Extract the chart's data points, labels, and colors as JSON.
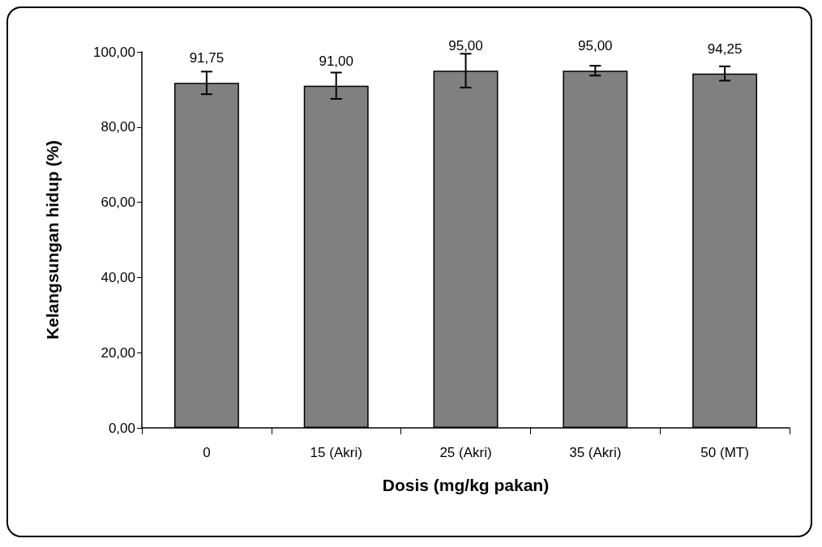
{
  "chart_data": {
    "type": "bar",
    "xlabel": "Dosis (mg/kg pakan)",
    "ylabel": "Kelangsungan hidup (%)",
    "categories": [
      "0",
      "15 (Akri)",
      "25 (Akri)",
      "35 (Akri)",
      "50 (MT)"
    ],
    "values": [
      91.75,
      91.0,
      95.0,
      95.0,
      94.25
    ],
    "value_labels": [
      "91,75",
      "91,00",
      "95,00",
      "95,00",
      "94,25"
    ],
    "errors": [
      3,
      3.5,
      4.5,
      1.3,
      1.9
    ],
    "color": "#808080",
    "ylim": [
      0,
      100
    ],
    "yticks": [
      {
        "value": 0,
        "label": "0,00"
      },
      {
        "value": 20,
        "label": "20,00"
      },
      {
        "value": 40,
        "label": "40,00"
      },
      {
        "value": 60,
        "label": "60,00"
      },
      {
        "value": 80,
        "label": "80,00"
      },
      {
        "value": 100,
        "label": "100,00"
      }
    ],
    "grid": false
  }
}
